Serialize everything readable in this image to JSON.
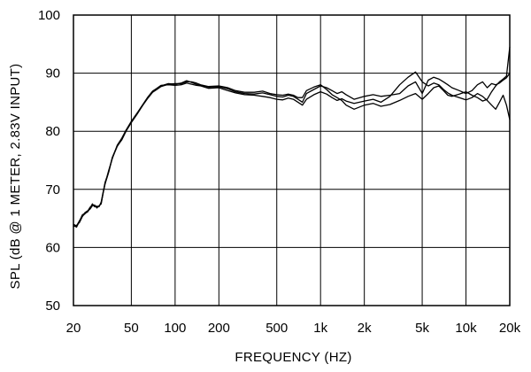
{
  "chart_data": {
    "type": "line",
    "title": "",
    "xlabel": "FREQUENCY  (HZ)",
    "ylabel": "SPL (dB @ 1 METER, 2.83V INPUT)",
    "xscale": "log",
    "xlim": [
      20,
      20000
    ],
    "ylim": [
      50,
      100
    ],
    "grid": true,
    "x_ticks": [
      {
        "value": 20,
        "label": "20"
      },
      {
        "value": 50,
        "label": "50"
      },
      {
        "value": 100,
        "label": "100"
      },
      {
        "value": 200,
        "label": "200"
      },
      {
        "value": 500,
        "label": "500"
      },
      {
        "value": 1000,
        "label": "1k"
      },
      {
        "value": 2000,
        "label": "2k"
      },
      {
        "value": 5000,
        "label": "5k"
      },
      {
        "value": 10000,
        "label": "10k"
      },
      {
        "value": 20000,
        "label": "20k"
      }
    ],
    "y_ticks": [
      {
        "value": 50,
        "label": "50"
      },
      {
        "value": 60,
        "label": "60"
      },
      {
        "value": 70,
        "label": "70"
      },
      {
        "value": 80,
        "label": "80"
      },
      {
        "value": 90,
        "label": "90"
      },
      {
        "value": 100,
        "label": "100"
      }
    ],
    "series": [
      {
        "x": [
          20,
          21,
          22,
          23,
          24,
          25,
          26,
          27,
          28,
          29,
          30,
          31,
          32,
          33,
          34,
          35,
          37,
          40,
          43,
          46,
          50,
          55,
          60,
          65,
          70,
          75,
          80,
          90,
          100,
          110,
          120,
          130,
          140,
          150,
          170,
          200,
          230,
          260,
          300,
          350,
          400,
          450,
          500,
          550,
          600,
          650,
          700,
          750,
          800,
          900,
          1000,
          1100,
          1200,
          1300,
          1400,
          1500,
          1700,
          2000,
          2300,
          2600,
          3000,
          3500,
          4000,
          4500,
          5000,
          5500,
          6000,
          6500,
          7000,
          7500,
          8000,
          9000,
          10000,
          11000,
          12000,
          13000,
          14000,
          15000,
          16000,
          17000,
          18000,
          19000,
          20000
        ],
        "y": [
          63.8,
          63.5,
          64.5,
          65.6,
          65.9,
          66.1,
          66.7,
          67.5,
          67.0,
          67.1,
          67.0,
          67.8,
          69.5,
          71.0,
          72.0,
          73.0,
          75.5,
          77.5,
          78.5,
          80.0,
          81.5,
          83.0,
          84.5,
          85.8,
          86.8,
          87.3,
          87.8,
          88.2,
          88.1,
          88.3,
          88.7,
          88.4,
          88.1,
          87.9,
          87.6,
          87.7,
          87.3,
          86.8,
          86.5,
          86.4,
          86.6,
          86.3,
          86.0,
          85.9,
          86.2,
          86.0,
          85.5,
          85.0,
          86.5,
          87.2,
          87.8,
          87.5,
          87.0,
          86.5,
          86.8,
          86.3,
          85.5,
          86.0,
          86.3,
          86.0,
          86.2,
          86.5,
          87.8,
          88.5,
          86.5,
          88.8,
          89.3,
          89.0,
          88.5,
          88.0,
          87.5,
          87.0,
          86.5,
          87.0,
          88.0,
          88.5,
          87.5,
          88.2,
          88.0,
          88.3,
          88.8,
          89.2,
          90.0
        ]
      },
      {
        "x": [
          20,
          21,
          22,
          23,
          24,
          25,
          26,
          27,
          28,
          29,
          30,
          31,
          32,
          33,
          34,
          35,
          37,
          40,
          43,
          46,
          50,
          55,
          60,
          65,
          70,
          75,
          80,
          90,
          100,
          110,
          120,
          130,
          140,
          150,
          170,
          200,
          230,
          260,
          300,
          350,
          400,
          450,
          500,
          550,
          600,
          650,
          700,
          750,
          800,
          900,
          1000,
          1100,
          1200,
          1300,
          1400,
          1500,
          1700,
          2000,
          2300,
          2600,
          3000,
          3500,
          4000,
          4500,
          5000,
          5500,
          6000,
          6500,
          7000,
          7500,
          8000,
          9000,
          10000,
          11000,
          12000,
          13000,
          14000,
          15000,
          16000,
          17000,
          18000,
          19000,
          20000
        ],
        "y": [
          63.6,
          63.8,
          64.3,
          65.3,
          66.0,
          66.3,
          66.6,
          67.2,
          67.3,
          66.8,
          67.2,
          67.5,
          69.3,
          71.2,
          72.2,
          73.3,
          75.3,
          77.6,
          78.8,
          80.2,
          81.7,
          83.2,
          84.6,
          85.9,
          86.9,
          87.4,
          87.9,
          88.0,
          87.9,
          88.0,
          88.3,
          88.1,
          87.9,
          87.8,
          87.4,
          87.5,
          87.0,
          86.6,
          86.3,
          86.2,
          86.0,
          85.8,
          85.5,
          85.4,
          85.7,
          85.5,
          85.0,
          84.5,
          85.5,
          86.3,
          86.8,
          86.4,
          85.8,
          85.3,
          85.6,
          85.2,
          84.8,
          85.2,
          85.5,
          85.0,
          86.0,
          88.0,
          89.3,
          90.2,
          88.5,
          87.8,
          88.3,
          88.0,
          87.2,
          86.6,
          86.2,
          85.8,
          85.4,
          85.8,
          86.5,
          86.0,
          85.3,
          84.5,
          83.8,
          85.0,
          86.2,
          84.5,
          82.0
        ]
      },
      {
        "x": [
          20,
          21,
          22,
          23,
          24,
          25,
          26,
          27,
          28,
          29,
          30,
          31,
          32,
          33,
          34,
          35,
          37,
          40,
          43,
          46,
          50,
          55,
          60,
          65,
          70,
          75,
          80,
          90,
          100,
          110,
          120,
          130,
          140,
          150,
          170,
          200,
          230,
          260,
          300,
          350,
          400,
          450,
          500,
          550,
          600,
          650,
          700,
          750,
          800,
          900,
          1000,
          1100,
          1200,
          1300,
          1400,
          1500,
          1700,
          2000,
          2300,
          2600,
          3000,
          3500,
          4000,
          4500,
          5000,
          5500,
          6000,
          6500,
          7000,
          7500,
          8000,
          9000,
          10000,
          11000,
          12000,
          13000,
          14000,
          15000,
          16000,
          17000,
          18000,
          19000,
          20000
        ],
        "y": [
          64.0,
          63.7,
          64.6,
          65.4,
          65.8,
          66.2,
          66.9,
          67.3,
          67.1,
          67.0,
          67.1,
          67.6,
          69.4,
          70.9,
          72.1,
          73.1,
          75.4,
          77.4,
          78.6,
          80.1,
          81.6,
          83.1,
          84.5,
          85.7,
          86.7,
          87.2,
          87.7,
          88.1,
          88.2,
          88.2,
          88.5,
          88.5,
          88.3,
          88.0,
          87.7,
          87.8,
          87.5,
          87.0,
          86.7,
          86.7,
          86.9,
          86.5,
          86.3,
          86.2,
          86.4,
          86.2,
          85.8,
          85.8,
          87.0,
          87.6,
          88.0,
          87.2,
          86.3,
          85.8,
          85.3,
          84.5,
          83.8,
          84.5,
          84.8,
          84.3,
          84.6,
          85.3,
          86.0,
          86.5,
          85.5,
          86.5,
          87.5,
          87.8,
          87.0,
          86.2,
          86.0,
          86.4,
          86.8,
          86.2,
          85.8,
          85.2,
          85.5,
          86.8,
          87.8,
          88.5,
          89.0,
          89.5,
          94.5
        ]
      }
    ]
  }
}
